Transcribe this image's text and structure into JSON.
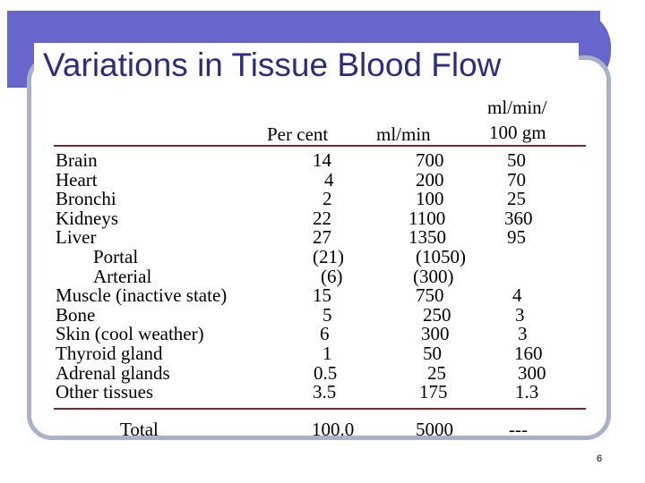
{
  "title": "Variations in Tissue Blood Flow",
  "headers": {
    "percent": "Per cent",
    "mlmin": "ml/min",
    "per100_line1": "ml/min/",
    "per100_line2": "100 gm"
  },
  "rows": [
    {
      "tissue": "Brain",
      "percent": "14",
      "mlmin": "700",
      "per100": "50"
    },
    {
      "tissue": "Heart",
      "percent": "4",
      "mlmin": "200",
      "per100": "70"
    },
    {
      "tissue": "Bronchi",
      "percent": "2",
      "mlmin": "100",
      "per100": "25"
    },
    {
      "tissue": "Kidneys",
      "percent": "22",
      "mlmin": "1100",
      "per100": "360"
    },
    {
      "tissue": "Liver",
      "percent": "27",
      "mlmin": "1350",
      "per100": "95"
    },
    {
      "tissue": "Portal",
      "percent": "(21)",
      "mlmin": "(1050)",
      "per100": ""
    },
    {
      "tissue": "Arterial",
      "percent": "(6)",
      "mlmin": "(300)",
      "per100": ""
    },
    {
      "tissue": "Muscle (inactive state)",
      "percent": "15",
      "mlmin": "750",
      "per100": "4"
    },
    {
      "tissue": "Bone",
      "percent": "5",
      "mlmin": "250",
      "per100": "3"
    },
    {
      "tissue": "Skin (cool weather)",
      "percent": "6",
      "mlmin": "300",
      "per100": "3"
    },
    {
      "tissue": "Thyroid gland",
      "percent": "1",
      "mlmin": "50",
      "per100": "160"
    },
    {
      "tissue": "Adrenal glands",
      "percent": "0.5",
      "mlmin": "25",
      "per100": "300"
    },
    {
      "tissue": "Other tissues",
      "percent": "3.5",
      "mlmin": "175",
      "per100": "1.3"
    }
  ],
  "total": {
    "tissue": "Total",
    "percent": "100.0",
    "mlmin": "5000",
    "per100": "---"
  },
  "page_number": "6"
}
